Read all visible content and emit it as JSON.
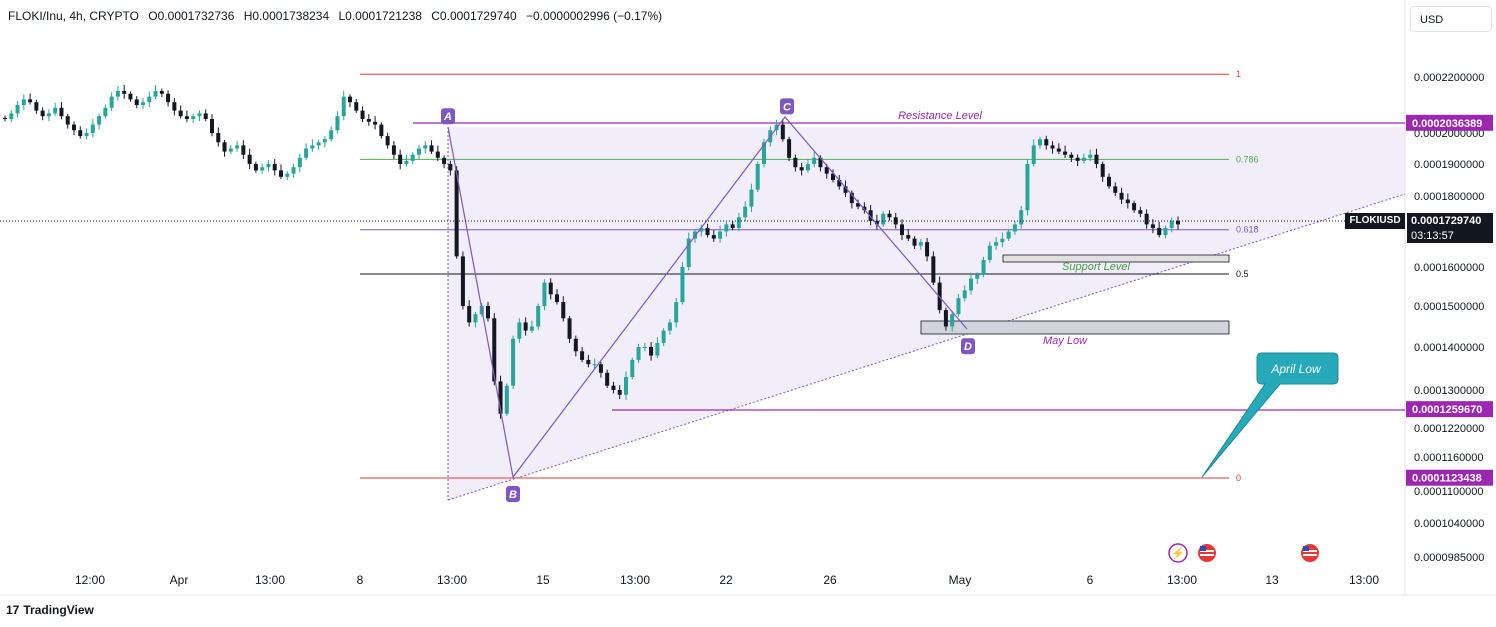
{
  "header": {
    "symbol": "FLOKI/Inu, 4h, CRYPTO",
    "open": "O0.0001732736",
    "high": "H0.0001738234",
    "low": "L0.0001721238",
    "close": "C0.0001729740",
    "change": "−0.0000002996 (−0.17%)"
  },
  "currency_button": "USD",
  "ticker": {
    "symbol": "FLOKIUSD",
    "price": "0.0001729740",
    "countdown": "03:13:57"
  },
  "footer": {
    "brand": "TradingView",
    "mark": "17"
  },
  "colors": {
    "up": "#26a69a",
    "down": "#131722",
    "pattern": "#7e57c2",
    "triangle_fill": "#ede7f6",
    "resistance": "#9c27b0",
    "support": "#43a047",
    "fib_green": "#4caf50",
    "fib_red": "#e53935",
    "callout": "#26a9b8"
  },
  "chart_data": {
    "type": "candlestick",
    "title": "",
    "x_ticks": [
      "12:00",
      "Apr",
      "13:00",
      "8",
      "13:00",
      "15",
      "13:00",
      "22",
      "26",
      "May",
      "6",
      "13:00",
      "13",
      "13:00"
    ],
    "y_ticks": [
      "0.0002200000",
      "0.0002000000",
      "0.0001900000",
      "0.0001800000",
      "0.0001600000",
      "0.0001500000",
      "0.0001400000",
      "0.0001300000",
      "0.0001220000",
      "0.0001160000",
      "0.0001100000",
      "0.0001040000",
      "0.0000985000"
    ],
    "price_labels": [
      "0.0002036389",
      "0.0001259670",
      "0.0001123438"
    ],
    "fib_levels": [
      {
        "label": "1",
        "price": 0.000221
      },
      {
        "label": "0.786",
        "price": 0.0001915
      },
      {
        "label": "0.618",
        "price": 0.0001705
      },
      {
        "label": "0.5",
        "price": 0.0001582
      },
      {
        "label": "0",
        "price": 0.0001123
      }
    ],
    "pattern_points": [
      {
        "label": "A",
        "price": 0.000201
      },
      {
        "label": "B",
        "price": 0.0001123
      },
      {
        "label": "C",
        "price": 0.0002045
      },
      {
        "label": "D",
        "price": 0.0001441
      }
    ],
    "annotations": {
      "resistance": "Resistance Level",
      "support": "Support Level",
      "may_low": "May Low",
      "april_low": "April Low"
    },
    "candles_close": [
      0.000205,
      0.000207,
      0.00021,
      0.000212,
      0.000211,
      0.000208,
      0.000206,
      0.000207,
      0.000209,
      0.000206,
      0.000203,
      0.000201,
      0.000199,
      0.0002,
      0.000203,
      0.000206,
      0.000209,
      0.000213,
      0.000215,
      0.000214,
      0.000212,
      0.00021,
      0.000211,
      0.000213,
      0.000215,
      0.000214,
      0.000211,
      0.000208,
      0.000206,
      0.000205,
      0.000206,
      0.000207,
      0.000205,
      0.0002,
      0.000197,
      0.000194,
      0.000195,
      0.000196,
      0.000193,
      0.00019,
      0.000188,
      0.000189,
      0.00019,
      0.000188,
      0.000186,
      0.000187,
      0.000189,
      0.000192,
      0.000195,
      0.000196,
      0.000197,
      0.000198,
      0.000201,
      0.000206,
      0.000213,
      0.000211,
      0.000208,
      0.000205,
      0.000204,
      0.000203,
      0.000199,
      0.000196,
      0.000193,
      0.00019,
      0.000191,
      0.000193,
      0.000195,
      0.000196,
      0.000194,
      0.000192,
      0.00019,
      0.000188,
      0.000163,
      0.00015,
      0.000146,
      0.000148,
      0.00015,
      0.000147,
      0.000132,
      0.000125,
      0.000131,
      0.000142,
      0.000146,
      0.000144,
      0.000145,
      0.00015,
      0.000156,
      0.000153,
      0.000151,
      0.000147,
      0.000142,
      0.000139,
      0.000137,
      0.000136,
      0.000136,
      0.000134,
      0.000131,
      0.00013,
      0.000129,
      0.000133,
      0.000137,
      0.00014,
      0.00014,
      0.000138,
      0.000141,
      0.000144,
      0.000146,
      0.000151,
      0.00016,
      0.000168,
      0.00017,
      0.000171,
      0.000169,
      0.000168,
      0.00017,
      0.000172,
      0.000171,
      0.000174,
      0.000177,
      0.000182,
      0.00019,
      0.000197,
      0.000201,
      0.000203,
      0.000198,
      0.000192,
      0.000189,
      0.000188,
      0.00019,
      0.000192,
      0.000189,
      0.000187,
      0.000185,
      0.000183,
      0.000181,
      0.000178,
      0.000177,
      0.000176,
      0.000173,
      0.000172,
      0.000175,
      0.000174,
      0.000172,
      0.000169,
      0.000168,
      0.000166,
      0.000167,
      0.000163,
      0.000156,
      0.000149,
      0.000145,
      0.000148,
      0.000152,
      0.000154,
      0.000157,
      0.000158,
      0.000162,
      0.000166,
      0.000167,
      0.000168,
      0.00017,
      0.000172,
      0.000176,
      0.00019,
      0.000196,
      0.000198,
      0.000196,
      0.000195,
      0.000194,
      0.000193,
      0.000192,
      0.000191,
      0.000192,
      0.000193,
      0.00019,
      0.000186,
      0.000183,
      0.000181,
      0.000179,
      0.000178,
      0.000176,
      0.000175,
      0.000172,
      0.000171,
      0.000169,
      0.000171,
      0.000173,
      0.000172
    ]
  }
}
